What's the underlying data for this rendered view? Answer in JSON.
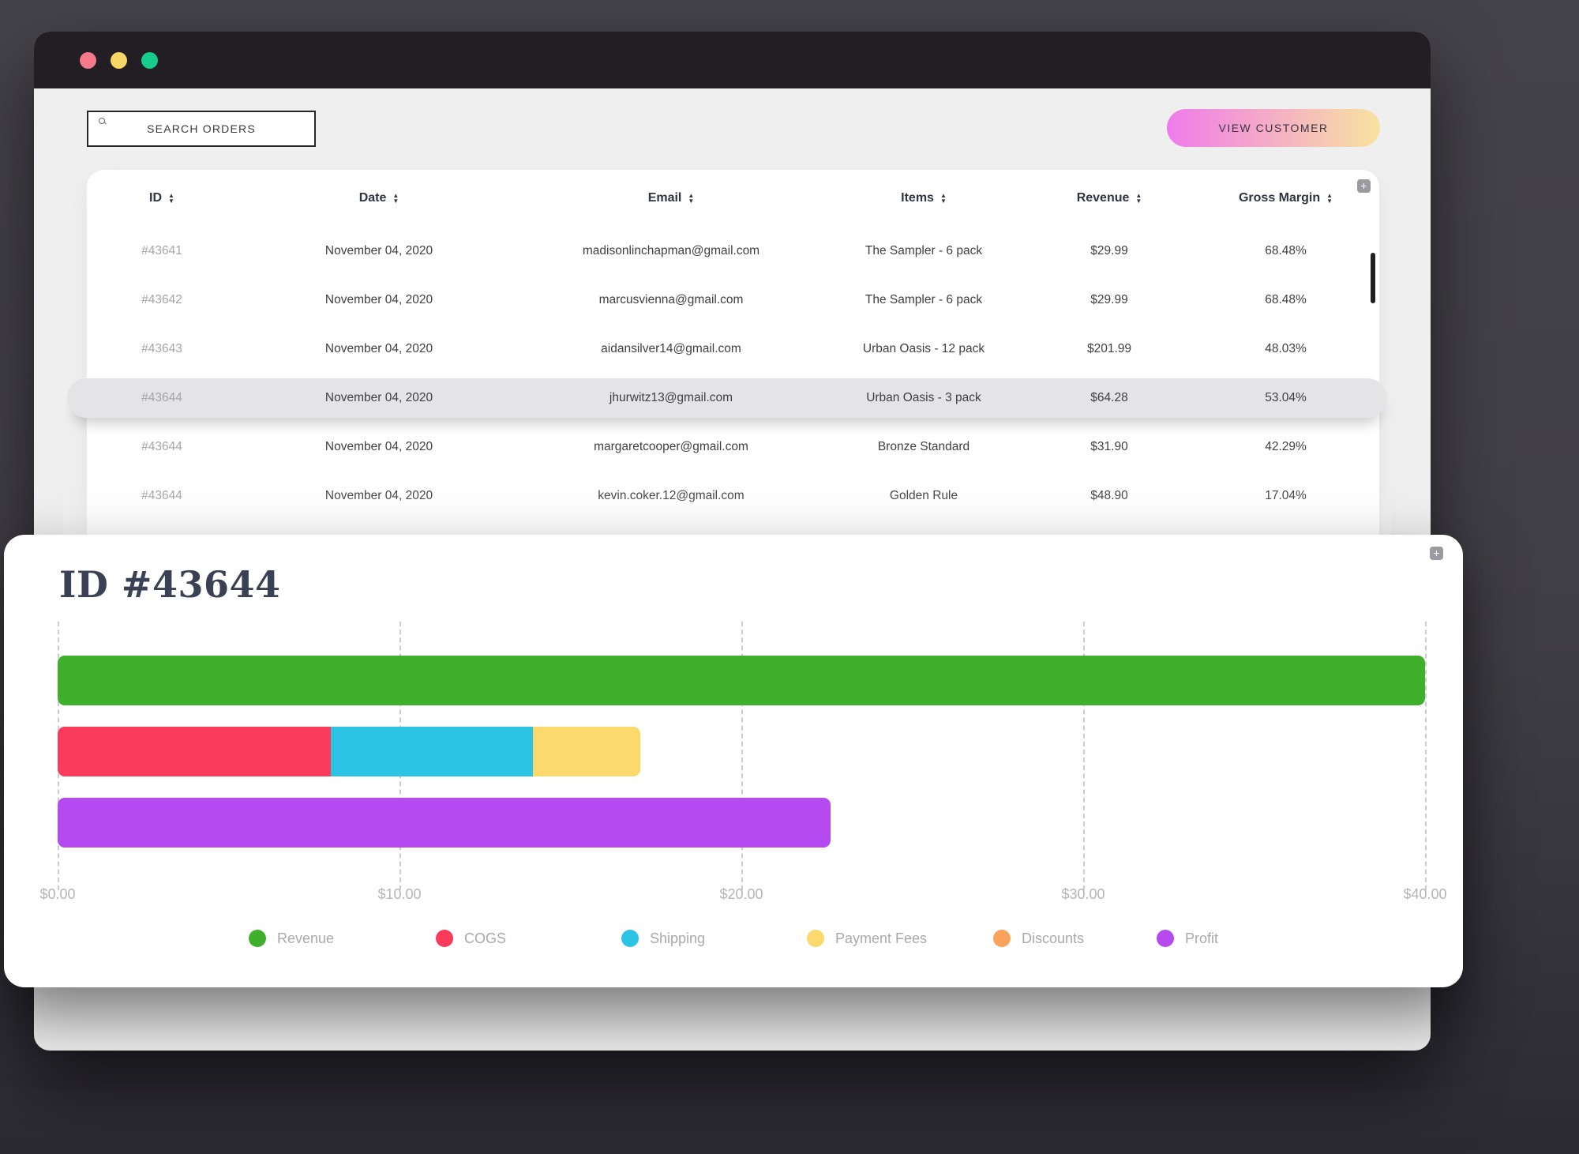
{
  "window": {
    "traffic_lights": [
      "close",
      "minimize",
      "maximize"
    ]
  },
  "toolbar": {
    "search_placeholder": "SEARCH ORDERS",
    "view_customer_label": "VIEW CUSTOMER"
  },
  "table": {
    "add_button_label": "+",
    "columns": [
      {
        "label": "ID",
        "sortable": true
      },
      {
        "label": "Date",
        "sortable": true
      },
      {
        "label": "Email",
        "sortable": true
      },
      {
        "label": "Items",
        "sortable": true
      },
      {
        "label": "Revenue",
        "sortable": true
      },
      {
        "label": "Gross Margin",
        "sortable": true
      }
    ],
    "rows": [
      {
        "id": "#43641",
        "date": "November 04, 2020",
        "email": "madisonlinchapman@gmail.com",
        "items": "The Sampler - 6 pack",
        "revenue": "$29.99",
        "gross_margin": "68.48%",
        "highlighted": false
      },
      {
        "id": "#43642",
        "date": "November 04, 2020",
        "email": "marcusvienna@gmail.com",
        "items": "The Sampler - 6 pack",
        "revenue": "$29.99",
        "gross_margin": "68.48%",
        "highlighted": false
      },
      {
        "id": "#43643",
        "date": "November 04, 2020",
        "email": "aidansilver14@gmail.com",
        "items": "Urban Oasis - 12 pack",
        "revenue": "$201.99",
        "gross_margin": "48.03%",
        "highlighted": false
      },
      {
        "id": "#43644",
        "date": "November 04, 2020",
        "email": "jhurwitz13@gmail.com",
        "items": "Urban Oasis - 3 pack",
        "revenue": "$64.28",
        "gross_margin": "53.04%",
        "highlighted": true
      },
      {
        "id": "#43644",
        "date": "November 04, 2020",
        "email": "margaretcooper@gmail.com",
        "items": "Bronze Standard",
        "revenue": "$31.90",
        "gross_margin": "42.29%",
        "highlighted": false
      },
      {
        "id": "#43644",
        "date": "November 04, 2020",
        "email": "kevin.coker.12@gmail.com",
        "items": "Golden Rule",
        "revenue": "$48.90",
        "gross_margin": "17.04%",
        "highlighted": false
      }
    ]
  },
  "detail_panel": {
    "title": "ID #43644",
    "add_button_label": "+"
  },
  "chart_data": {
    "type": "bar",
    "orientation": "horizontal",
    "title": "ID #43644",
    "axis": {
      "min": 0,
      "max": 40,
      "tick_labels": [
        "$0.00",
        "$10.00",
        "$20.00",
        "$30.00",
        "$40.00"
      ],
      "format": "currency_usd"
    },
    "grid": "vertical-dashed",
    "bars": [
      {
        "name": "revenue-bar",
        "segments": [
          {
            "label": "Revenue",
            "value": 40.0,
            "color": "#3eb02c"
          }
        ]
      },
      {
        "name": "costs-bar",
        "segments": [
          {
            "label": "COGS",
            "value": 8.0,
            "color": "#fa3b5c"
          },
          {
            "label": "Shipping",
            "value": 5.9,
            "color": "#2cc3e4"
          },
          {
            "label": "Payment Fees",
            "value": 3.15,
            "color": "#fbd96d"
          }
        ]
      },
      {
        "name": "profit-bar",
        "segments": [
          {
            "label": "Profit",
            "value": 22.6,
            "color": "#b44af0"
          }
        ]
      }
    ],
    "legend_position": "bottom",
    "legend": [
      {
        "label": "Revenue",
        "color": "#3eb02c"
      },
      {
        "label": "COGS",
        "color": "#fa3b5c"
      },
      {
        "label": "Shipping",
        "color": "#2cc3e4"
      },
      {
        "label": "Payment Fees",
        "color": "#fbd96d"
      },
      {
        "label": "Discounts",
        "color": "#f9a25b"
      },
      {
        "label": "Profit",
        "color": "#b44af0"
      }
    ]
  }
}
